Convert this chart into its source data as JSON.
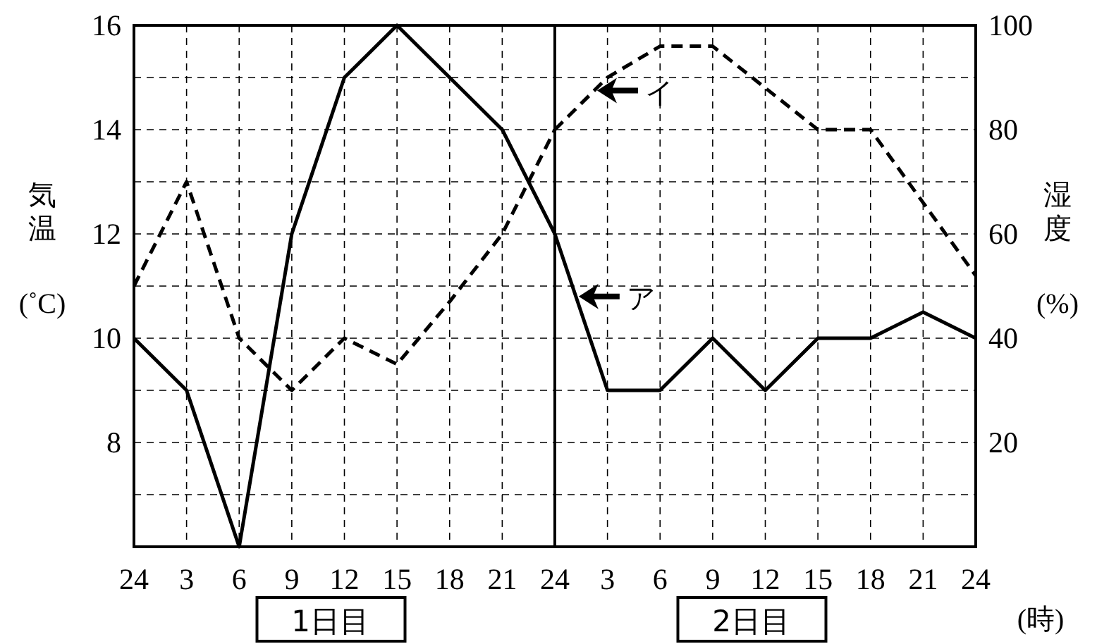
{
  "chart_data": [
    {
      "type": "line",
      "ylabel": "気温 (˚C)",
      "categories": [
        "24",
        "3",
        "6",
        "9",
        "12",
        "15",
        "18",
        "21",
        "24"
      ],
      "ylim": [
        6,
        16
      ],
      "yticks": [
        {
          "value": 7,
          "label": null
        },
        8,
        {
          "value": 9,
          "label": null
        },
        10,
        {
          "value": 11,
          "label": null
        },
        12,
        {
          "value": 13,
          "label": null
        },
        14,
        {
          "value": 15,
          "label": null
        },
        16
      ],
      "y2lim": [
        0,
        100
      ],
      "grid": true,
      "marker": "none",
      "series": [
        {
          "color": "#000000",
          "line_style": "solid",
          "values": [
            10,
            9,
            6,
            12,
            15,
            16,
            15,
            14,
            12
          ]
        },
        {
          "color": "#000000",
          "line_style": "dashed",
          "axis": "y2",
          "values": [
            50,
            70,
            40,
            30,
            40,
            35,
            47,
            60,
            80
          ]
        }
      ],
      "annotations": [
        "1日目"
      ]
    },
    {
      "type": "line",
      "xlabel": "(時)",
      "y2label": "湿度 (%)",
      "categories": [
        null,
        "3",
        "6",
        "9",
        "12",
        "15",
        "18",
        "21",
        "24"
      ],
      "ylim": [
        6,
        16
      ],
      "y2lim": [
        0,
        100
      ],
      "y2ticks": [
        {
          "value": 10,
          "label": null
        },
        20,
        {
          "value": 30,
          "label": null
        },
        40,
        {
          "value": 50,
          "label": null
        },
        60,
        {
          "value": 70,
          "label": null
        },
        80,
        {
          "value": 90,
          "label": null
        },
        100
      ],
      "grid": true,
      "marker": "none",
      "legend": "top",
      "series": [
        {
          "name": "ア",
          "color": "#000000",
          "line_style": "solid",
          "values": [
            12,
            9,
            9,
            10,
            9,
            10,
            10,
            10.5,
            10
          ]
        },
        {
          "name": "イ",
          "color": "#000000",
          "line_style": "dashed",
          "axis": "y2",
          "values": [
            80,
            90,
            96,
            96,
            88,
            80,
            80,
            66,
            52
          ]
        }
      ],
      "annotations": [
        "2日目"
      ]
    }
  ]
}
